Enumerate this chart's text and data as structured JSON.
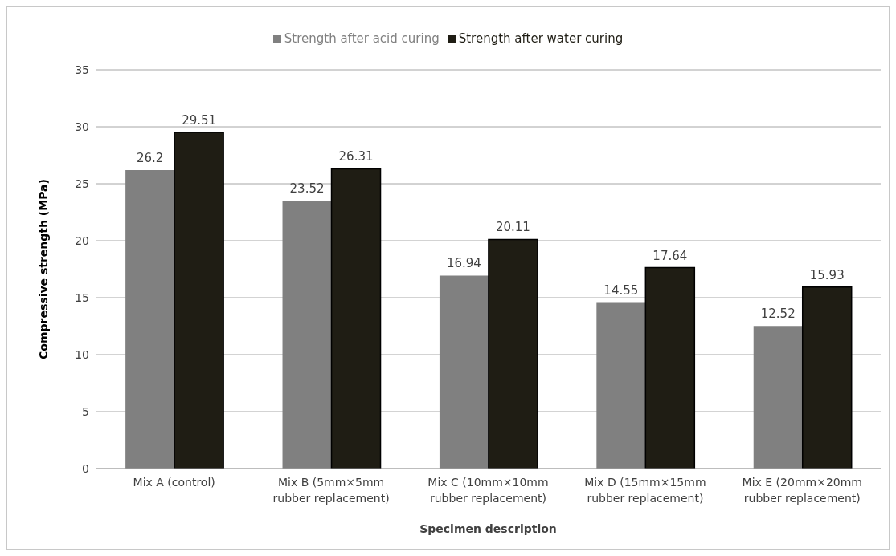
{
  "chart_data": {
    "type": "bar",
    "xlabel": "Specimen description",
    "ylabel": "Compressive strength (MPa)",
    "categories": [
      "Mix A (control)",
      "Mix B (5mm×5mm rubber replacement)",
      "Mix C (10mm×10mm rubber replacement)",
      "Mix D (15mm×15mm rubber replacement)",
      "Mix E (20mm×20mm rubber replacement)"
    ],
    "series": [
      {
        "name": "Strength after acid curing",
        "color": "#808080",
        "values": [
          26.2,
          23.52,
          16.94,
          14.55,
          12.52
        ]
      },
      {
        "name": "Strength after water curing",
        "color": "#1f1d14",
        "values": [
          29.51,
          26.31,
          20.11,
          17.64,
          15.93
        ]
      }
    ],
    "ylim": [
      0,
      35
    ],
    "yticks": [
      0,
      5,
      10,
      15,
      20,
      25,
      30,
      35
    ],
    "grid": "y",
    "legend": "top",
    "data_labels": true
  }
}
